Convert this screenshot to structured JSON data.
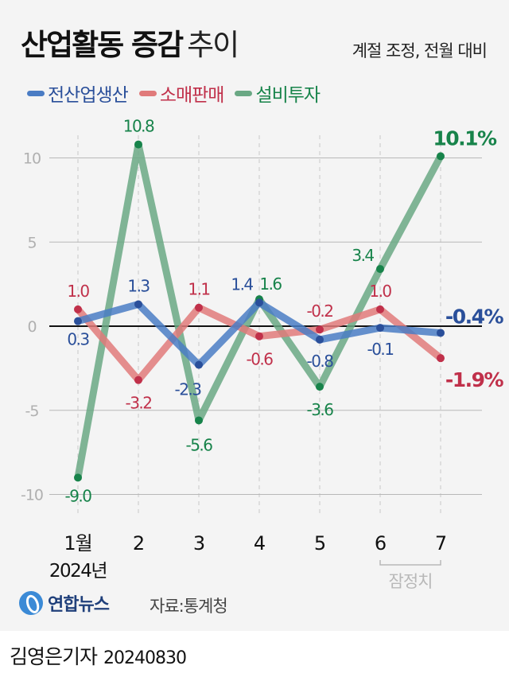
{
  "header": {
    "title_bold": "산업활동 증감",
    "title_light": "추이",
    "subtitle": "계절 조정, 전월 대비"
  },
  "legend": [
    {
      "name": "전산업생산",
      "color": "#4a7cc4",
      "text_color": "#2a4f9a"
    },
    {
      "name": "소매판매",
      "color": "#e07a7a",
      "text_color": "#c0304a"
    },
    {
      "name": "설비투자",
      "color": "#6aa884",
      "text_color": "#17834a"
    }
  ],
  "footer": {
    "logo_text": "연합뉴스",
    "source": "자료:통계청",
    "byline": "김영은기자",
    "date": "20240830"
  },
  "chart_data": {
    "type": "line",
    "title": "산업활동 증감 추이",
    "subtitle": "계절 조정, 전월 대비",
    "categories": [
      "1월",
      "2",
      "3",
      "4",
      "5",
      "6",
      "7"
    ],
    "x_sublabel": "2024년",
    "provisional_label": "잠정치",
    "provisional_range": [
      "6",
      "7"
    ],
    "xlabel": "",
    "ylabel": "",
    "ylim": [
      -12,
      12
    ],
    "yticks": [
      -10,
      -5,
      0,
      5,
      10
    ],
    "grid": true,
    "legend_position": "top-left",
    "unit": "%",
    "series": [
      {
        "name": "전산업생산",
        "values": [
          0.3,
          1.3,
          -2.3,
          1.4,
          -0.8,
          -0.1,
          -0.4
        ],
        "color": "#4a7cc4",
        "label_color": "#2a4f9a",
        "labels": [
          "0.3",
          "1.3",
          "-2.3",
          "1.4",
          "-0.8",
          "-0.1",
          "-0.4%"
        ]
      },
      {
        "name": "소매판매",
        "values": [
          1.0,
          -3.2,
          1.1,
          -0.6,
          -0.2,
          1.0,
          -1.9
        ],
        "color": "#e07a7a",
        "label_color": "#c0304a",
        "labels": [
          "1.0",
          "-3.2",
          "1.1",
          "-0.6",
          "-0.2",
          "1.0",
          "-1.9%"
        ]
      },
      {
        "name": "설비투자",
        "values": [
          -9.0,
          10.8,
          -5.6,
          1.6,
          -3.6,
          3.4,
          10.1
        ],
        "color": "#6aa884",
        "label_color": "#17834a",
        "labels": [
          "-9.0",
          "10.8",
          "-5.6",
          "1.6",
          "-3.6",
          "3.4",
          "10.1%"
        ]
      }
    ]
  }
}
